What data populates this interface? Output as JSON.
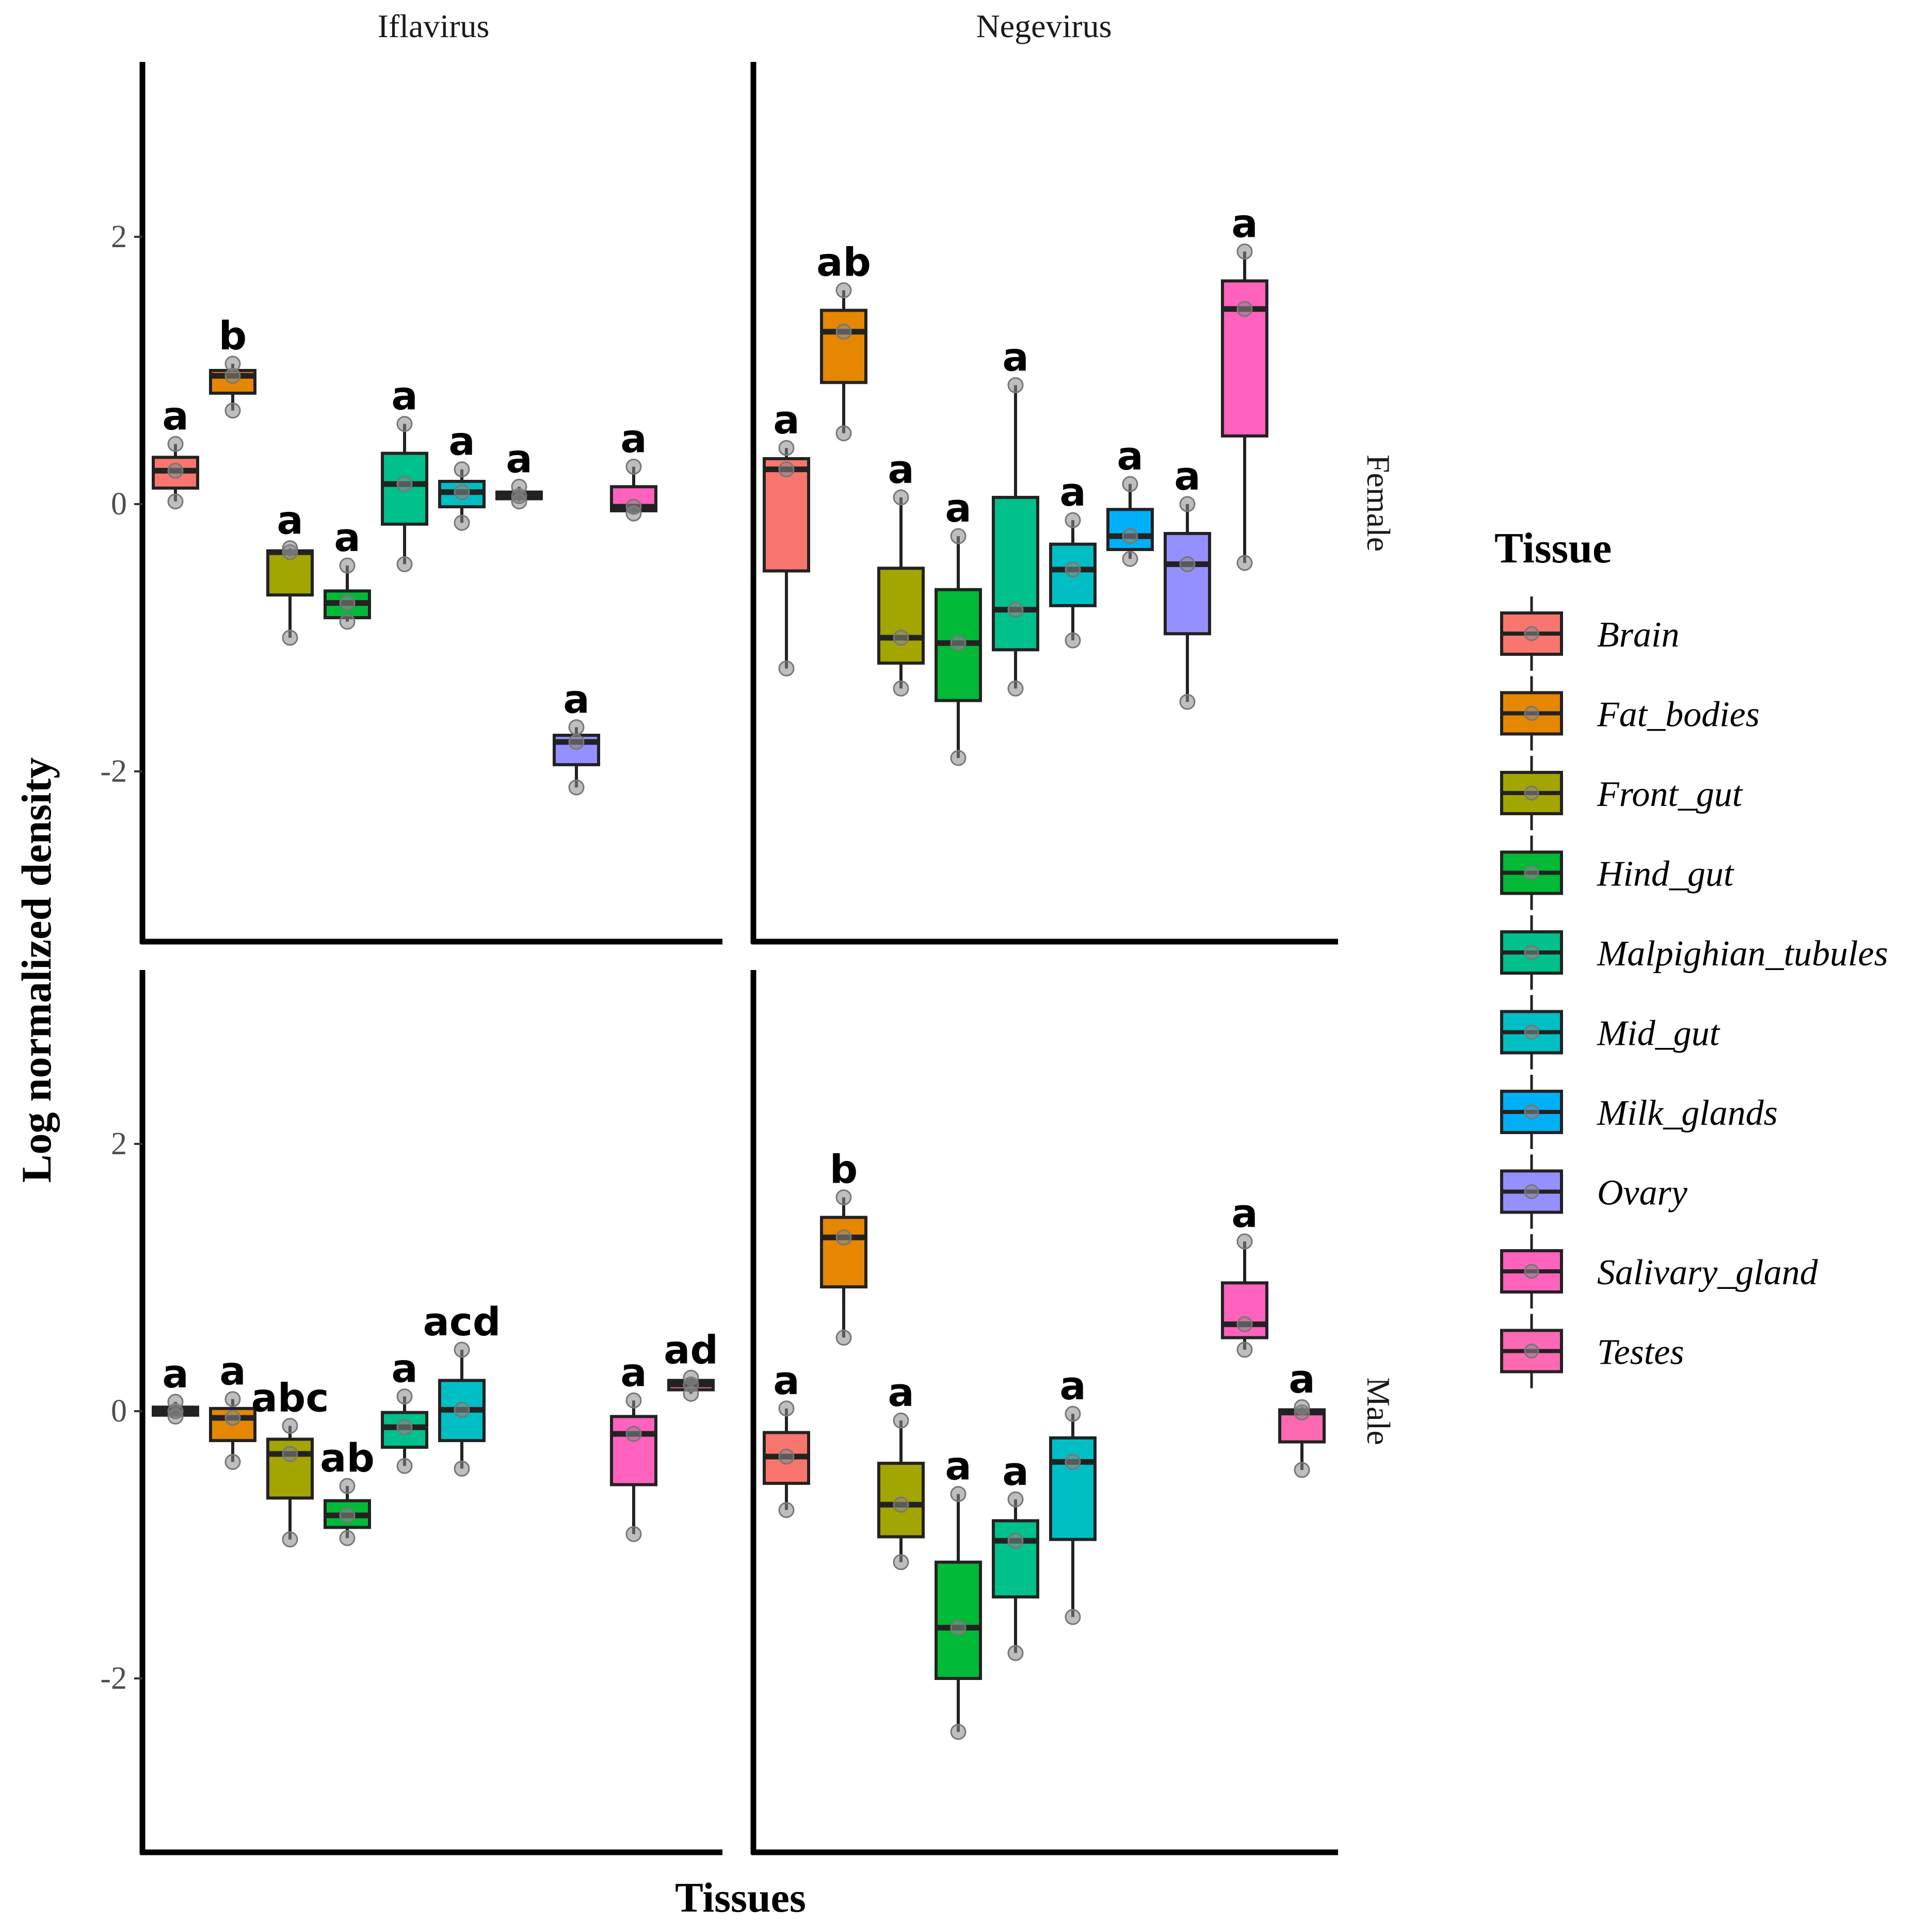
{
  "chart_data": {
    "type": "boxplot",
    "xlabel": "Tissues",
    "ylabel": "Log normalized density",
    "ylim": [
      -3.3,
      3.3
    ],
    "yticks": [
      -2,
      0,
      2
    ],
    "ytick_labels": [
      "-2",
      "0",
      "2"
    ],
    "columns": [
      "Iflavirus",
      "Negevirus"
    ],
    "rows": [
      "Female",
      "Male"
    ],
    "legend": {
      "title": "Tissue",
      "items": [
        {
          "name": "Brain",
          "color": "#F8766D"
        },
        {
          "name": "Fat_bodies",
          "color": "#E58700"
        },
        {
          "name": "Front_gut",
          "color": "#A3A500"
        },
        {
          "name": "Hind_gut",
          "color": "#00BA38"
        },
        {
          "name": "Malpighian_tubules",
          "color": "#00C08B"
        },
        {
          "name": "Mid_gut",
          "color": "#00BFC4"
        },
        {
          "name": "Milk_glands",
          "color": "#00B0F6"
        },
        {
          "name": "Ovary",
          "color": "#9590FF"
        },
        {
          "name": "Salivary_gland",
          "color": "#FF62BC"
        },
        {
          "name": "Testes",
          "color": "#FF69B4"
        }
      ]
    },
    "panels": [
      {
        "virus": "Iflavirus",
        "sex": "Female",
        "boxes": [
          {
            "tissue": "Brain",
            "pos": 1,
            "whisker_low": 0.02,
            "q1": 0.12,
            "median": 0.25,
            "q3": 0.35,
            "whisker_high": 0.45,
            "points": [
              0.02,
              0.25,
              0.45
            ],
            "letter": "a"
          },
          {
            "tissue": "Fat_bodies",
            "pos": 2,
            "whisker_low": 0.7,
            "q1": 0.83,
            "median": 0.96,
            "q3": 1.0,
            "whisker_high": 1.05,
            "points": [
              0.7,
              0.96,
              1.05
            ],
            "letter": "b"
          },
          {
            "tissue": "Front_gut",
            "pos": 3,
            "whisker_low": -1.0,
            "q1": -0.68,
            "median": -0.36,
            "q3": -0.35,
            "whisker_high": -0.33,
            "points": [
              -1.0,
              -0.36,
              -0.33
            ],
            "letter": "a"
          },
          {
            "tissue": "Hind_gut",
            "pos": 4,
            "whisker_low": -0.88,
            "q1": -0.85,
            "median": -0.74,
            "q3": -0.65,
            "whisker_high": -0.46,
            "points": [
              -0.88,
              -0.74,
              -0.46
            ],
            "letter": "a"
          },
          {
            "tissue": "Malpighian_tubules",
            "pos": 5,
            "whisker_low": -0.45,
            "q1": -0.15,
            "median": 0.15,
            "q3": 0.38,
            "whisker_high": 0.6,
            "points": [
              -0.45,
              0.15,
              0.6
            ],
            "letter": "a"
          },
          {
            "tissue": "Mid_gut",
            "pos": 6,
            "whisker_low": -0.14,
            "q1": -0.02,
            "median": 0.09,
            "q3": 0.17,
            "whisker_high": 0.26,
            "points": [
              -0.14,
              0.09,
              0.26
            ],
            "letter": "a"
          },
          {
            "tissue": "Milk_glands",
            "pos": 7,
            "whisker_low": 0.02,
            "q1": 0.04,
            "median": 0.06,
            "q3": 0.09,
            "whisker_high": 0.13,
            "points": [
              0.02,
              0.06,
              0.13
            ],
            "letter": "a"
          },
          {
            "tissue": "Ovary",
            "pos": 8,
            "whisker_low": -2.12,
            "q1": -1.95,
            "median": -1.78,
            "q3": -1.73,
            "whisker_high": -1.67,
            "points": [
              -2.12,
              -1.78,
              -1.67
            ],
            "letter": "a"
          },
          {
            "tissue": "Salivary_gland",
            "pos": 9,
            "whisker_low": -0.07,
            "q1": -0.05,
            "median": -0.02,
            "q3": 0.13,
            "whisker_high": 0.28,
            "points": [
              -0.07,
              -0.02,
              0.28
            ],
            "letter": "a"
          }
        ]
      },
      {
        "virus": "Negevirus",
        "sex": "Female",
        "boxes": [
          {
            "tissue": "Brain",
            "pos": 1,
            "whisker_low": -1.23,
            "q1": -0.5,
            "median": 0.26,
            "q3": 0.34,
            "whisker_high": 0.42,
            "points": [
              -1.23,
              0.26,
              0.42
            ],
            "letter": "a"
          },
          {
            "tissue": "Fat_bodies",
            "pos": 2,
            "whisker_low": 0.53,
            "q1": 0.91,
            "median": 1.29,
            "q3": 1.45,
            "whisker_high": 1.6,
            "points": [
              0.53,
              1.29,
              1.6
            ],
            "letter": "ab"
          },
          {
            "tissue": "Front_gut",
            "pos": 3,
            "whisker_low": -1.38,
            "q1": -1.19,
            "median": -1.0,
            "q3": -0.48,
            "whisker_high": 0.05,
            "points": [
              -1.38,
              -1.0,
              0.05
            ],
            "letter": "a"
          },
          {
            "tissue": "Hind_gut",
            "pos": 4,
            "whisker_low": -1.9,
            "q1": -1.47,
            "median": -1.04,
            "q3": -0.64,
            "whisker_high": -0.24,
            "points": [
              -1.9,
              -1.04,
              -0.24
            ],
            "letter": "a"
          },
          {
            "tissue": "Malpighian_tubules",
            "pos": 5,
            "whisker_low": -1.38,
            "q1": -1.09,
            "median": -0.79,
            "q3": 0.05,
            "whisker_high": 0.89,
            "points": [
              -1.38,
              -0.79,
              0.89
            ],
            "letter": "a"
          },
          {
            "tissue": "Mid_gut",
            "pos": 6,
            "whisker_low": -1.02,
            "q1": -0.76,
            "median": -0.49,
            "q3": -0.3,
            "whisker_high": -0.12,
            "points": [
              -1.02,
              -0.49,
              -0.12
            ],
            "letter": "a"
          },
          {
            "tissue": "Milk_glands",
            "pos": 7,
            "whisker_low": -0.41,
            "q1": -0.34,
            "median": -0.24,
            "q3": -0.04,
            "whisker_high": 0.15,
            "points": [
              -0.41,
              -0.24,
              0.15
            ],
            "letter": "a"
          },
          {
            "tissue": "Ovary",
            "pos": 8,
            "whisker_low": -1.48,
            "q1": -0.97,
            "median": -0.45,
            "q3": -0.22,
            "whisker_high": 0.0,
            "points": [
              -1.48,
              -0.45,
              0.0
            ],
            "letter": "a"
          },
          {
            "tissue": "Salivary_gland",
            "pos": 9,
            "whisker_low": -0.44,
            "q1": 0.51,
            "median": 1.46,
            "q3": 1.67,
            "whisker_high": 1.89,
            "points": [
              -0.44,
              1.46,
              1.89
            ],
            "letter": "a"
          }
        ]
      },
      {
        "virus": "Iflavirus",
        "sex": "Male",
        "boxes": [
          {
            "tissue": "Brain",
            "pos": 1,
            "whisker_low": -0.04,
            "q1": -0.03,
            "median": 0.0,
            "q3": 0.03,
            "whisker_high": 0.07,
            "points": [
              -0.04,
              0.0,
              0.07
            ],
            "letter": "a"
          },
          {
            "tissue": "Fat_bodies",
            "pos": 2,
            "whisker_low": -0.38,
            "q1": -0.22,
            "median": -0.05,
            "q3": 0.02,
            "whisker_high": 0.09,
            "points": [
              -0.38,
              -0.05,
              0.09
            ],
            "letter": "a"
          },
          {
            "tissue": "Front_gut",
            "pos": 3,
            "whisker_low": -0.96,
            "q1": -0.65,
            "median": -0.32,
            "q3": -0.21,
            "whisker_high": -0.11,
            "points": [
              -0.96,
              -0.32,
              -0.11
            ],
            "letter": "abc"
          },
          {
            "tissue": "Hind_gut",
            "pos": 4,
            "whisker_low": -0.95,
            "q1": -0.87,
            "median": -0.78,
            "q3": -0.67,
            "whisker_high": -0.56,
            "points": [
              -0.95,
              -0.78,
              -0.56
            ],
            "letter": "ab"
          },
          {
            "tissue": "Malpighian_tubules",
            "pos": 5,
            "whisker_low": -0.41,
            "q1": -0.27,
            "median": -0.12,
            "q3": -0.01,
            "whisker_high": 0.11,
            "points": [
              -0.41,
              -0.12,
              0.11
            ],
            "letter": "a"
          },
          {
            "tissue": "Mid_gut",
            "pos": 6,
            "whisker_low": -0.43,
            "q1": -0.22,
            "median": 0.01,
            "q3": 0.23,
            "whisker_high": 0.46,
            "points": [
              -0.43,
              0.01,
              0.46
            ],
            "letter": "acd"
          },
          {
            "tissue": "Salivary_gland",
            "pos": 9,
            "whisker_low": -0.92,
            "q1": -0.55,
            "median": -0.17,
            "q3": -0.04,
            "whisker_high": 0.08,
            "points": [
              -0.92,
              -0.17,
              0.08
            ],
            "letter": "a"
          },
          {
            "tissue": "Testes",
            "pos": 10,
            "whisker_low": 0.13,
            "q1": 0.16,
            "median": 0.2,
            "q3": 0.23,
            "whisker_high": 0.25,
            "points": [
              0.13,
              0.2,
              0.25
            ],
            "letter": "ad"
          }
        ]
      },
      {
        "virus": "Negevirus",
        "sex": "Male",
        "boxes": [
          {
            "tissue": "Brain",
            "pos": 1,
            "whisker_low": -0.74,
            "q1": -0.54,
            "median": -0.34,
            "q3": -0.16,
            "whisker_high": 0.02,
            "points": [
              -0.74,
              -0.34,
              0.02
            ],
            "letter": "a"
          },
          {
            "tissue": "Fat_bodies",
            "pos": 2,
            "whisker_low": 0.55,
            "q1": 0.93,
            "median": 1.3,
            "q3": 1.45,
            "whisker_high": 1.6,
            "points": [
              0.55,
              1.3,
              1.6
            ],
            "letter": "b"
          },
          {
            "tissue": "Front_gut",
            "pos": 3,
            "whisker_low": -1.13,
            "q1": -0.94,
            "median": -0.7,
            "q3": -0.39,
            "whisker_high": -0.07,
            "points": [
              -1.13,
              -0.7,
              -0.07
            ],
            "letter": "a"
          },
          {
            "tissue": "Hind_gut",
            "pos": 4,
            "whisker_low": -2.4,
            "q1": -2.0,
            "median": -1.62,
            "q3": -1.13,
            "whisker_high": -0.62,
            "points": [
              -2.4,
              -1.62,
              -0.62
            ],
            "letter": "a"
          },
          {
            "tissue": "Malpighian_tubules",
            "pos": 5,
            "whisker_low": -1.81,
            "q1": -1.39,
            "median": -0.97,
            "q3": -0.82,
            "whisker_high": -0.66,
            "points": [
              -1.81,
              -0.97,
              -0.66
            ],
            "letter": "a"
          },
          {
            "tissue": "Mid_gut",
            "pos": 6,
            "whisker_low": -1.54,
            "q1": -0.96,
            "median": -0.38,
            "q3": -0.2,
            "whisker_high": -0.02,
            "points": [
              -1.54,
              -0.38,
              -0.02
            ],
            "letter": "a"
          },
          {
            "tissue": "Salivary_gland",
            "pos": 9,
            "whisker_low": 0.46,
            "q1": 0.55,
            "median": 0.65,
            "q3": 0.96,
            "whisker_high": 1.27,
            "points": [
              0.46,
              0.65,
              1.27
            ],
            "letter": "a"
          },
          {
            "tissue": "Testes",
            "pos": 10,
            "whisker_low": -0.44,
            "q1": -0.23,
            "median": -0.01,
            "q3": 0.01,
            "whisker_high": 0.03,
            "points": [
              -0.44,
              -0.01,
              0.03
            ],
            "letter": "a"
          }
        ]
      }
    ]
  }
}
